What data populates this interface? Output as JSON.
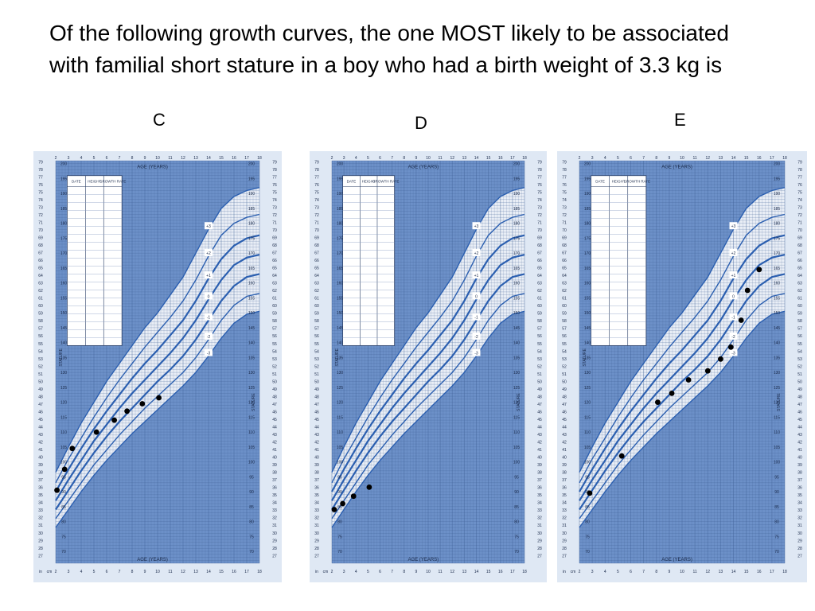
{
  "question": "Of the following growth curves, the one MOST likely to be associated with familial short stature in a boy who had a birth weight of 3.3 kg is",
  "chart_data": [
    {
      "type": "scatter",
      "label": "C",
      "header_title": "AGE (YEARS)",
      "footer_title": "AGE (YEARS)",
      "side_label": "STATURE",
      "table_headers": [
        "DATE",
        "HEIGHT",
        "GROWTH RATE"
      ],
      "x_label": "AGE (YEARS)",
      "xlim": [
        2,
        18
      ],
      "ylim": [
        66,
        201
      ],
      "points": [
        {
          "x": 2.1,
          "y": 90.5
        },
        {
          "x": 2.7,
          "y": 97.5
        },
        {
          "x": 3.3,
          "y": 104.5
        },
        {
          "x": 5.2,
          "y": 110
        },
        {
          "x": 6.6,
          "y": 114
        },
        {
          "x": 7.6,
          "y": 117
        },
        {
          "x": 8.8,
          "y": 119.5
        },
        {
          "x": 10.1,
          "y": 121.5
        }
      ]
    },
    {
      "type": "scatter",
      "label": "D",
      "header_title": "AGE (YEARS)",
      "footer_title": "AGE (YEARS)",
      "side_label": "STATURE",
      "table_headers": [
        "DATE",
        "HEIGHT",
        "GROWTH RATE"
      ],
      "x_label": "AGE (YEARS)",
      "xlim": [
        2,
        18
      ],
      "ylim": [
        66,
        201
      ],
      "points": [
        {
          "x": 2.2,
          "y": 84
        },
        {
          "x": 2.9,
          "y": 86
        },
        {
          "x": 3.8,
          "y": 88.5
        },
        {
          "x": 5.1,
          "y": 91.5
        }
      ]
    },
    {
      "type": "scatter",
      "label": "E",
      "header_title": "AGE (YEARS)",
      "footer_title": "AGE (YEARS)",
      "side_label": "STATURE",
      "table_headers": [
        "DATE",
        "HEIGHT",
        "GROWTH RATE"
      ],
      "x_label": "AGE (YEARS)",
      "xlim": [
        2,
        18
      ],
      "ylim": [
        66,
        201
      ],
      "points": [
        {
          "x": 2.8,
          "y": 89.5
        },
        {
          "x": 5.3,
          "y": 102
        },
        {
          "x": 8.1,
          "y": 120
        },
        {
          "x": 9.2,
          "y": 123
        },
        {
          "x": 10.5,
          "y": 127.5
        },
        {
          "x": 12.0,
          "y": 130.5
        },
        {
          "x": 13.0,
          "y": 134.5
        },
        {
          "x": 13.8,
          "y": 138.5
        },
        {
          "x": 14.6,
          "y": 147.5
        },
        {
          "x": 15.1,
          "y": 157.5
        },
        {
          "x": 16.0,
          "y": 164.5
        }
      ]
    }
  ]
}
